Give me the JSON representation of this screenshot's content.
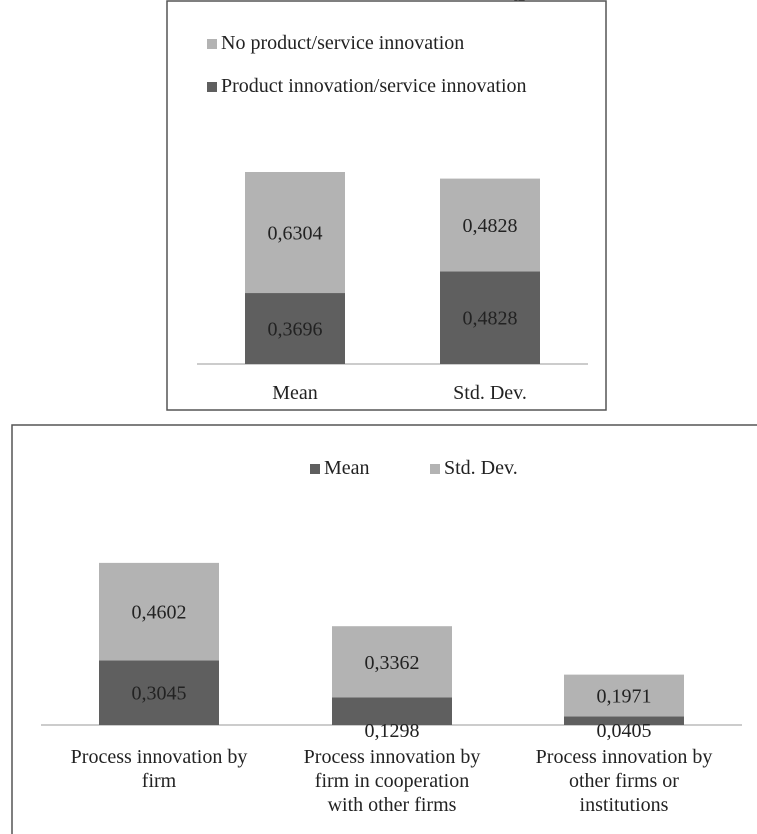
{
  "partial_title": "p",
  "colors": {
    "dark": "#5f5f5f",
    "light": "#b3b3b3",
    "axis": "#999999"
  },
  "chart_data": [
    {
      "type": "bar",
      "stacked": true,
      "categories": [
        "Mean",
        "Std. Dev."
      ],
      "series": [
        {
          "name": "Product innovation/service innovation",
          "color": "#5f5f5f",
          "values": [
            0.3696,
            0.4828
          ],
          "labels": [
            "0,3696",
            "0,4828"
          ]
        },
        {
          "name": "No product/service innovation",
          "color": "#b3b3b3",
          "values": [
            0.6304,
            0.4828
          ],
          "labels": [
            "0,6304",
            "0,4828"
          ]
        }
      ],
      "legend_position": "top-left"
    },
    {
      "type": "bar",
      "stacked": true,
      "categories": [
        "Process innovation by firm",
        "Process innovation by firm in cooperation with other firms",
        "Process innovation by other firms or institutions"
      ],
      "category_lines": [
        [
          "Process innovation by",
          "firm"
        ],
        [
          "Process innovation by",
          "firm in cooperation",
          "with other firms"
        ],
        [
          "Process innovation by",
          "other firms or",
          "institutions"
        ]
      ],
      "series": [
        {
          "name": "Mean",
          "color": "#5f5f5f",
          "values": [
            0.3045,
            0.1298,
            0.0405
          ],
          "labels": [
            "0,3045",
            "0,1298",
            "0,0405"
          ]
        },
        {
          "name": "Std. Dev.",
          "color": "#b3b3b3",
          "values": [
            0.4602,
            0.3362,
            0.1971
          ],
          "labels": [
            "0,4602",
            "0,3362",
            "0,1971"
          ]
        }
      ],
      "legend_position": "top"
    }
  ]
}
